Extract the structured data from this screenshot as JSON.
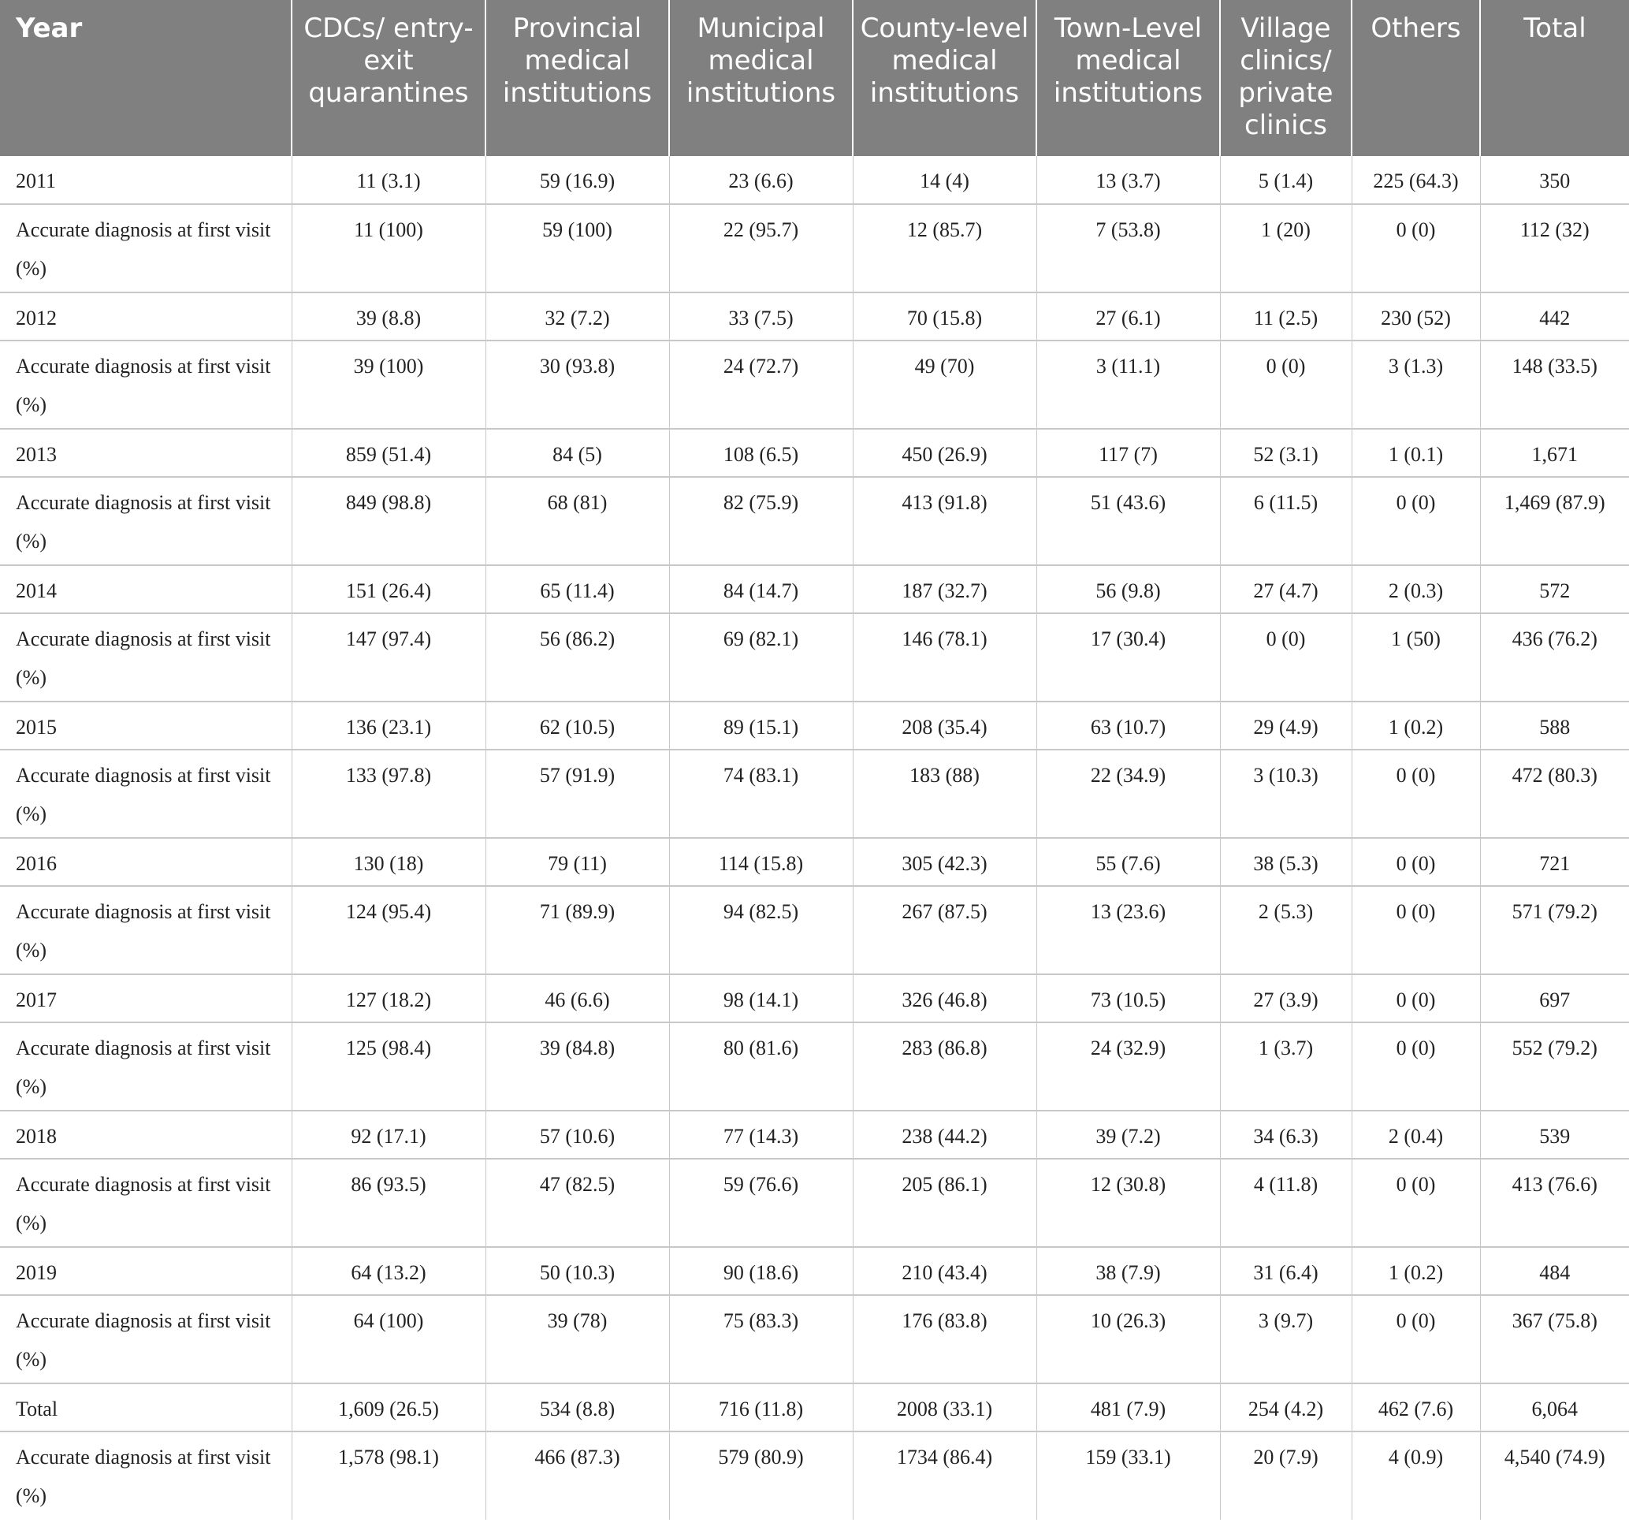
{
  "columns": [
    "Year",
    "CDCs/ entry-exit quarantines",
    "Provincial medical institutions",
    "Municipal medical institutions",
    "County-level medical institutions",
    "Town-Level medical institutions",
    "Village clinics/ private clinics",
    "Others",
    "Total"
  ],
  "rows": [
    [
      "2011",
      "11 (3.1)",
      "59 (16.9)",
      "23 (6.6)",
      "14 (4)",
      "13 (3.7)",
      "5 (1.4)",
      "225 (64.3)",
      "350"
    ],
    [
      "Accurate diagnosis at first visit (%)",
      "11 (100)",
      "59 (100)",
      "22 (95.7)",
      "12 (85.7)",
      "7 (53.8)",
      "1 (20)",
      "0 (0)",
      "112 (32)"
    ],
    [
      "2012",
      "39 (8.8)",
      "32 (7.2)",
      "33 (7.5)",
      "70 (15.8)",
      "27 (6.1)",
      "11 (2.5)",
      "230 (52)",
      "442"
    ],
    [
      "Accurate diagnosis at first visit (%)",
      "39 (100)",
      "30 (93.8)",
      "24 (72.7)",
      "49 (70)",
      "3 (11.1)",
      "0 (0)",
      "3 (1.3)",
      "148 (33.5)"
    ],
    [
      "2013",
      "859 (51.4)",
      "84 (5)",
      "108 (6.5)",
      "450 (26.9)",
      "117 (7)",
      "52 (3.1)",
      "1 (0.1)",
      "1,671"
    ],
    [
      "Accurate diagnosis at first visit (%)",
      "849 (98.8)",
      "68 (81)",
      "82 (75.9)",
      "413 (91.8)",
      "51 (43.6)",
      "6 (11.5)",
      "0 (0)",
      "1,469 (87.9)"
    ],
    [
      "2014",
      "151 (26.4)",
      "65 (11.4)",
      "84 (14.7)",
      "187 (32.7)",
      "56 (9.8)",
      "27 (4.7)",
      "2 (0.3)",
      "572"
    ],
    [
      "Accurate diagnosis at first visit (%)",
      "147 (97.4)",
      "56 (86.2)",
      "69 (82.1)",
      "146 (78.1)",
      "17 (30.4)",
      "0 (0)",
      "1 (50)",
      "436 (76.2)"
    ],
    [
      "2015",
      "136 (23.1)",
      "62 (10.5)",
      "89 (15.1)",
      "208 (35.4)",
      "63 (10.7)",
      "29 (4.9)",
      "1 (0.2)",
      "588"
    ],
    [
      "Accurate diagnosis at first visit (%)",
      "133 (97.8)",
      "57 (91.9)",
      "74 (83.1)",
      "183 (88)",
      "22 (34.9)",
      "3 (10.3)",
      "0 (0)",
      "472 (80.3)"
    ],
    [
      "2016",
      "130 (18)",
      "79 (11)",
      "114 (15.8)",
      "305 (42.3)",
      "55 (7.6)",
      "38 (5.3)",
      "0 (0)",
      "721"
    ],
    [
      "Accurate diagnosis at first visit (%)",
      "124 (95.4)",
      "71 (89.9)",
      "94 (82.5)",
      "267 (87.5)",
      "13 (23.6)",
      "2 (5.3)",
      "0 (0)",
      "571 (79.2)"
    ],
    [
      "2017",
      "127 (18.2)",
      "46 (6.6)",
      "98 (14.1)",
      "326 (46.8)",
      "73 (10.5)",
      "27 (3.9)",
      "0 (0)",
      "697"
    ],
    [
      "Accurate diagnosis at first visit (%)",
      "125 (98.4)",
      "39 (84.8)",
      "80 (81.6)",
      "283 (86.8)",
      "24 (32.9)",
      "1 (3.7)",
      "0 (0)",
      "552 (79.2)"
    ],
    [
      "2018",
      "92 (17.1)",
      "57 (10.6)",
      "77 (14.3)",
      "238 (44.2)",
      "39 (7.2)",
      "34 (6.3)",
      "2 (0.4)",
      "539"
    ],
    [
      "Accurate diagnosis at first visit (%)",
      "86 (93.5)",
      "47 (82.5)",
      "59 (76.6)",
      "205 (86.1)",
      "12 (30.8)",
      "4 (11.8)",
      "0 (0)",
      "413 (76.6)"
    ],
    [
      "2019",
      "64 (13.2)",
      "50 (10.3)",
      "90 (18.6)",
      "210 (43.4)",
      "38 (7.9)",
      "31 (6.4)",
      "1 (0.2)",
      "484"
    ],
    [
      "Accurate diagnosis at first visit (%)",
      "64 (100)",
      "39 (78)",
      "75 (83.3)",
      "176 (83.8)",
      "10 (26.3)",
      "3 (9.7)",
      "0 (0)",
      "367 (75.8)"
    ],
    [
      "Total",
      "1,609 (26.5)",
      "534 (8.8)",
      "716 (11.8)",
      "2008 (33.1)",
      "481 (7.9)",
      "254 (4.2)",
      "462 (7.6)",
      "6,064"
    ],
    [
      "Accurate diagnosis at first visit (%)",
      "1,578 (98.1)",
      "466 (87.3)",
      "579 (80.9)",
      "1734 (86.4)",
      "159 (33.1)",
      "20 (7.9)",
      "4 (0.9)",
      "4,540 (74.9)"
    ]
  ],
  "colors": {
    "header_bg": "#808080",
    "header_text": "#ffffff",
    "grid": "#c8c8c8"
  }
}
